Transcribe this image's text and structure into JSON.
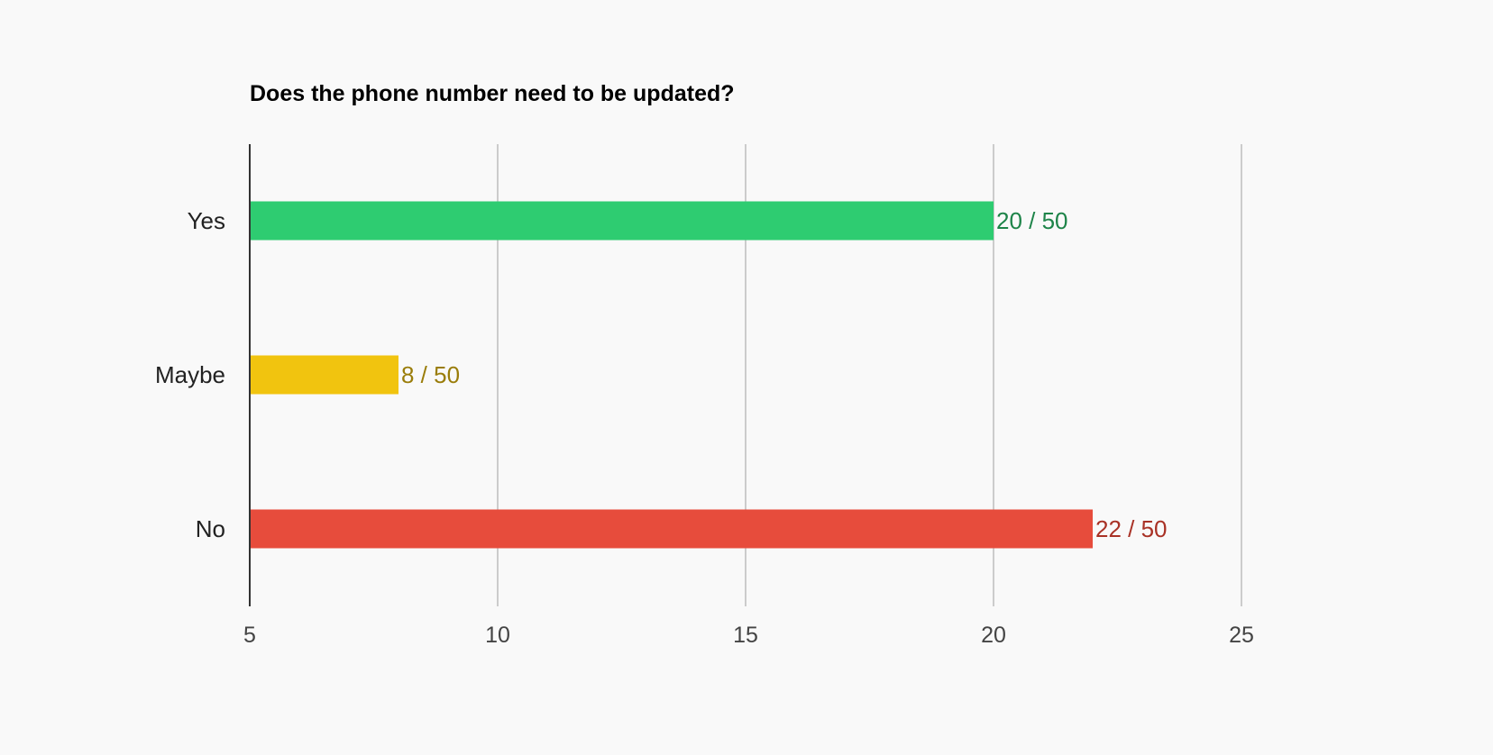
{
  "chart_data": {
    "type": "bar",
    "orientation": "horizontal",
    "title": "Does the phone number need to be updated?",
    "xlabel": "",
    "ylabel": "",
    "xlim": [
      5,
      25
    ],
    "x_ticks": [
      5,
      10,
      15,
      20,
      25
    ],
    "x_tick_labels": [
      "5",
      "10",
      "15",
      "20",
      "25"
    ],
    "grid": true,
    "legend": "none",
    "categories": [
      "Yes",
      "Maybe",
      "No"
    ],
    "values": [
      20,
      8,
      22
    ],
    "data_labels": [
      "20 / 50",
      "8 / 50",
      "22 / 50"
    ],
    "colors": [
      "#2ecc71",
      "#f1c40f",
      "#e74c3c"
    ],
    "label_colors": [
      "#1e8449",
      "#9a7d0a",
      "#a93226"
    ]
  }
}
